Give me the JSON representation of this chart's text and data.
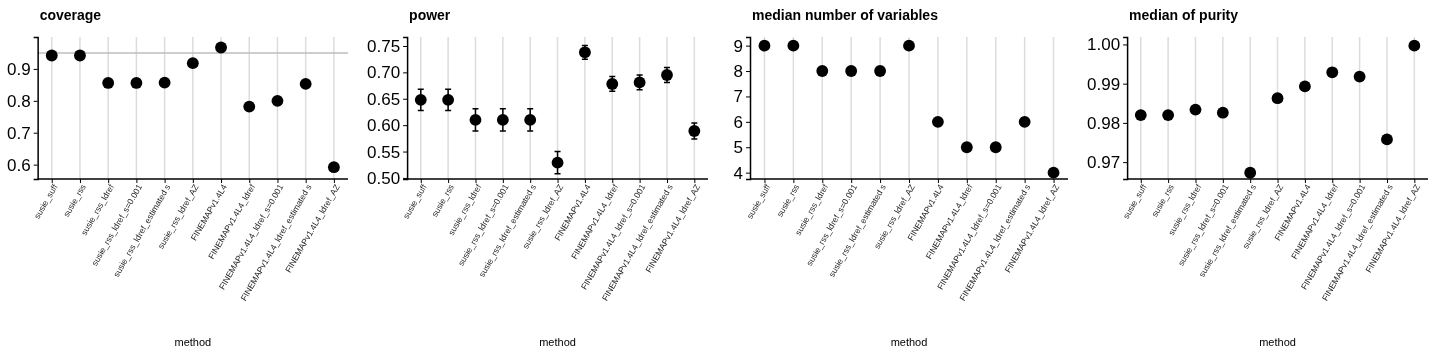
{
  "chart_data": [
    {
      "type": "scatter",
      "title": "coverage",
      "xlabel": "method",
      "categories": [
        "susie_suff",
        "susie_rss",
        "susie_rss_ldref",
        "susie_rss_ldref_s=0.001",
        "susie_rss_ldref_estimated s",
        "susie_rss_ldref_AZ",
        "FINEMAPv1.4L4",
        "FINEMAPv1.4L4_ldref",
        "FINEMAPv1.4L4_ldref_s=0.001",
        "FINEMAPv1.4L4_ldref_estimated s",
        "FINEMAPv1.4L4_ldref_AZ"
      ],
      "series": [
        {
          "color": "#000000",
          "values": [
            0.942,
            0.942,
            0.856,
            0.856,
            0.857,
            0.918,
            0.967,
            0.782,
            0.8,
            0.853,
            0.592
          ]
        }
      ],
      "ylim": [
        0.555,
        1.0
      ],
      "yticks": [
        0.6,
        0.7,
        0.8,
        0.9
      ],
      "grid": "x",
      "marker": "circle",
      "ref_lines": [
        {
          "axis": "y",
          "value": 0.95,
          "color": "#bebebe"
        }
      ]
    },
    {
      "type": "scatter",
      "title": "power",
      "xlabel": "method",
      "categories": [
        "susie_suff",
        "susie_rss",
        "susie_rss_ldref",
        "susie_rss_ldref_s=0.001",
        "susie_rss_ldref_estimated s",
        "susie_rss_ldref_AZ",
        "FINEMAPv1.4L4",
        "FINEMAPv1.4L4_ldref",
        "FINEMAPv1.4L4_ldref_s=0.001",
        "FINEMAPv1.4L4_ldref_estimated s",
        "FINEMAPv1.4L4_ldref_AZ"
      ],
      "series": [
        {
          "color": "#000000",
          "values": [
            0.648,
            0.648,
            0.61,
            0.61,
            0.61,
            0.529,
            0.738,
            0.678,
            0.681,
            0.695,
            0.589
          ],
          "errors": [
            0.02,
            0.02,
            0.021,
            0.021,
            0.021,
            0.021,
            0.013,
            0.014,
            0.014,
            0.014,
            0.015
          ]
        }
      ],
      "ylim": [
        0.498,
        0.767
      ],
      "yticks": [
        {
          "value": 0.5,
          "label": "0.50"
        },
        0.55,
        {
          "value": 0.6,
          "label": "0.60"
        },
        0.65,
        {
          "value": 0.7,
          "label": "0.70"
        },
        0.75
      ],
      "grid": "x",
      "marker": "circle"
    },
    {
      "type": "scatter",
      "title": "median number of variables",
      "xlabel": "method",
      "categories": [
        "susie_suff",
        "susie_rss",
        "susie_rss_ldref",
        "susie_rss_ldref_s=0.001",
        "susie_rss_ldref_estimated s",
        "susie_rss_ldref_AZ",
        "FINEMAPv1.4L4",
        "FINEMAPv1.4L4_ldref",
        "FINEMAPv1.4L4_ldref_s=0.001",
        "FINEMAPv1.4L4_ldref_estimated s",
        "FINEMAPv1.4L4_ldref_AZ"
      ],
      "series": [
        {
          "color": "#000000",
          "values": [
            9,
            9,
            8,
            8,
            8,
            9,
            6,
            5,
            5,
            6,
            4
          ]
        }
      ],
      "ylim": [
        3.75,
        9.34
      ],
      "yticks": [
        4,
        5,
        6,
        7,
        8,
        9
      ],
      "grid": "x",
      "marker": "circle"
    },
    {
      "type": "scatter",
      "title": "median of purity",
      "xlabel": "method",
      "categories": [
        "susie_suff",
        "susie_rss",
        "susie_rss_ldref",
        "susie_rss_ldref_s=0.001",
        "susie_rss_ldref_estimated s",
        "susie_rss_ldref_AZ",
        "FINEMAPv1.4L4",
        "FINEMAPv1.4L4_ldref",
        "FINEMAPv1.4L4_ldref_s=0.001",
        "FINEMAPv1.4L4_ldref_estimated s",
        "FINEMAPv1.4L4_ldref_AZ"
      ],
      "series": [
        {
          "color": "#000000",
          "values": [
            0.982,
            0.982,
            0.9834,
            0.9826,
            0.9673,
            0.9863,
            0.9893,
            0.9929,
            0.9918,
            0.9758,
            0.9997
          ]
        }
      ],
      "ylim": [
        0.9657,
        1.0019
      ],
      "yticks": [
        0.97,
        0.98,
        0.99,
        {
          "value": 1.0,
          "label": "1.00"
        }
      ],
      "grid": "x",
      "marker": "circle"
    }
  ]
}
